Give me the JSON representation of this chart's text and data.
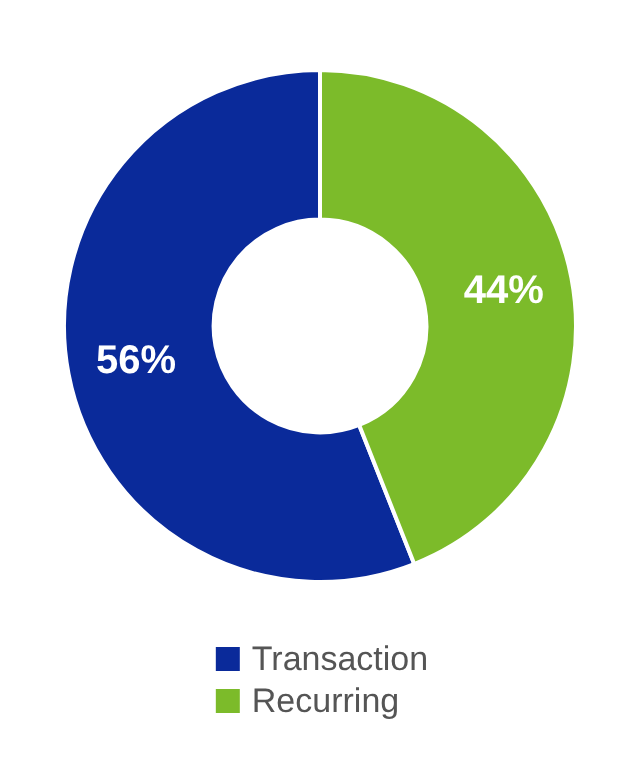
{
  "chart_data": {
    "type": "donut",
    "categories": [
      "Transaction",
      "Recurring"
    ],
    "values": [
      56,
      44
    ],
    "colors": [
      "#0a2a9a",
      "#7cbb2a"
    ],
    "value_labels": [
      "56%",
      "44%"
    ],
    "legend": "bottom"
  }
}
